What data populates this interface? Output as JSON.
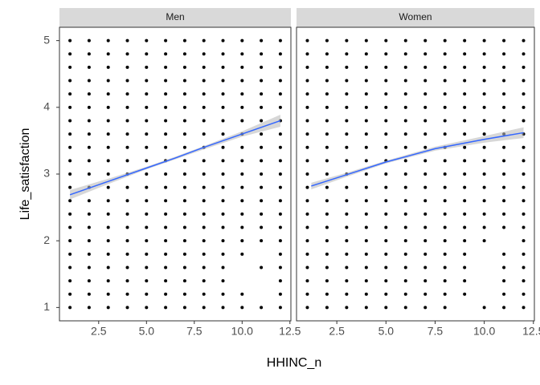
{
  "chart_data": {
    "type": "scatter",
    "x_label": "HHINC_n",
    "y_label": "Life_satisfaction",
    "xlim": [
      0.45,
      12.55
    ],
    "ylim": [
      0.8,
      5.2
    ],
    "xticks": [
      2.5,
      {
        "value": 5,
        "label": "5.0"
      },
      7.5,
      {
        "value": 10,
        "label": "10.0"
      },
      12.5
    ],
    "yticks": [
      1,
      2,
      3,
      4,
      5
    ],
    "point_color": "#000000",
    "line_color": "#3366ff",
    "band_color": "#bdbdbd",
    "panels": [
      {
        "name": "Men",
        "rows": [
          {
            "y": 1,
            "x": [
              1,
              2,
              3,
              4,
              5,
              6,
              7,
              8,
              9,
              10,
              11,
              12
            ]
          },
          {
            "y": 1.2,
            "x": [
              1,
              2,
              3,
              4,
              5,
              6,
              7,
              8,
              9,
              10,
              12
            ]
          },
          {
            "y": 1.4,
            "x": [
              1,
              2,
              3,
              4,
              5,
              6,
              7,
              8,
              9,
              12
            ]
          },
          {
            "y": 1.6,
            "x": [
              1,
              2,
              3,
              4,
              5,
              6,
              7,
              8,
              9,
              11,
              12
            ]
          },
          {
            "y": 1.8,
            "x": [
              1,
              2,
              3,
              4,
              5,
              6,
              7,
              8,
              9,
              10,
              12
            ]
          },
          {
            "y": 2,
            "x": [
              1,
              2,
              3,
              4,
              5,
              6,
              7,
              8,
              9,
              10,
              11,
              12
            ]
          },
          {
            "y": 2.2,
            "x": [
              1,
              2,
              3,
              4,
              5,
              6,
              7,
              8,
              9,
              10,
              11,
              12
            ]
          },
          {
            "y": 2.4,
            "x": [
              1,
              2,
              3,
              4,
              5,
              6,
              7,
              8,
              9,
              10,
              11,
              12
            ]
          },
          {
            "y": 2.6,
            "x": [
              1,
              2,
              3,
              4,
              5,
              6,
              7,
              8,
              9,
              10,
              11,
              12
            ]
          },
          {
            "y": 2.8,
            "x": [
              1,
              2,
              3,
              4,
              5,
              6,
              7,
              8,
              9,
              10,
              11,
              12
            ]
          },
          {
            "y": 3,
            "x": [
              1,
              2,
              3,
              4,
              5,
              6,
              7,
              8,
              9,
              10,
              11,
              12
            ]
          },
          {
            "y": 3.2,
            "x": [
              1,
              2,
              3,
              4,
              5,
              6,
              7,
              8,
              9,
              10,
              11,
              12
            ]
          },
          {
            "y": 3.4,
            "x": [
              1,
              2,
              3,
              4,
              5,
              6,
              7,
              8,
              9,
              10,
              11,
              12
            ]
          },
          {
            "y": 3.6,
            "x": [
              1,
              2,
              3,
              4,
              5,
              6,
              7,
              8,
              9,
              10,
              11,
              12
            ]
          },
          {
            "y": 3.8,
            "x": [
              1,
              2,
              3,
              4,
              5,
              6,
              7,
              8,
              9,
              10,
              11,
              12
            ]
          },
          {
            "y": 4,
            "x": [
              1,
              2,
              3,
              4,
              5,
              6,
              7,
              8,
              9,
              10,
              11,
              12
            ]
          },
          {
            "y": 4.2,
            "x": [
              1,
              2,
              3,
              4,
              5,
              6,
              7,
              8,
              9,
              10,
              11,
              12
            ]
          },
          {
            "y": 4.4,
            "x": [
              1,
              2,
              3,
              4,
              5,
              6,
              7,
              8,
              9,
              10,
              11,
              12
            ]
          },
          {
            "y": 4.6,
            "x": [
              1,
              2,
              3,
              4,
              5,
              6,
              7,
              8,
              9,
              10,
              11,
              12
            ]
          },
          {
            "y": 4.8,
            "x": [
              1,
              2,
              3,
              4,
              5,
              6,
              7,
              8,
              9,
              10,
              11,
              12
            ]
          },
          {
            "y": 5,
            "x": [
              1,
              2,
              3,
              4,
              5,
              6,
              7,
              8,
              9,
              10,
              11,
              12
            ]
          }
        ],
        "smooth": {
          "x": [
            1,
            3,
            5,
            6.5,
            8,
            10,
            12
          ],
          "y": [
            2.69,
            2.89,
            3.09,
            3.24,
            3.4,
            3.6,
            3.8
          ],
          "ci_lower": [
            2.62,
            2.85,
            3.07,
            3.22,
            3.37,
            3.56,
            3.71
          ],
          "ci_upper": [
            2.76,
            2.93,
            3.11,
            3.26,
            3.42,
            3.64,
            3.89
          ]
        }
      },
      {
        "name": "Women",
        "rows": [
          {
            "y": 1,
            "x": [
              1,
              2,
              3,
              4,
              5,
              6,
              7,
              8,
              10,
              11,
              12
            ]
          },
          {
            "y": 1.2,
            "x": [
              1,
              2,
              3,
              4,
              5,
              6,
              7,
              8,
              9,
              11,
              12
            ]
          },
          {
            "y": 1.4,
            "x": [
              1,
              2,
              3,
              4,
              5,
              6,
              7,
              8,
              9,
              11,
              12
            ]
          },
          {
            "y": 1.6,
            "x": [
              1,
              2,
              3,
              4,
              5,
              6,
              7,
              8,
              9,
              11,
              12
            ]
          },
          {
            "y": 1.8,
            "x": [
              1,
              2,
              3,
              4,
              5,
              6,
              7,
              8,
              9,
              11,
              12
            ]
          },
          {
            "y": 2,
            "x": [
              1,
              2,
              3,
              4,
              5,
              6,
              7,
              8,
              9,
              10,
              12
            ]
          },
          {
            "y": 2.2,
            "x": [
              1,
              2,
              3,
              4,
              5,
              6,
              7,
              8,
              9,
              10,
              11,
              12
            ]
          },
          {
            "y": 2.4,
            "x": [
              1,
              2,
              3,
              4,
              5,
              6,
              7,
              8,
              9,
              10,
              11,
              12
            ]
          },
          {
            "y": 2.6,
            "x": [
              1,
              2,
              3,
              4,
              5,
              6,
              7,
              8,
              9,
              10,
              11,
              12
            ]
          },
          {
            "y": 2.8,
            "x": [
              1,
              2,
              3,
              4,
              5,
              6,
              7,
              8,
              9,
              10,
              11,
              12
            ]
          },
          {
            "y": 3,
            "x": [
              1,
              2,
              3,
              4,
              5,
              6,
              7,
              8,
              9,
              10,
              11,
              12
            ]
          },
          {
            "y": 3.2,
            "x": [
              1,
              2,
              3,
              4,
              5,
              6,
              7,
              8,
              9,
              10,
              11,
              12
            ]
          },
          {
            "y": 3.4,
            "x": [
              1,
              2,
              3,
              4,
              5,
              6,
              7,
              8,
              9,
              10,
              11,
              12
            ]
          },
          {
            "y": 3.6,
            "x": [
              1,
              2,
              3,
              4,
              5,
              6,
              7,
              8,
              9,
              10,
              11,
              12
            ]
          },
          {
            "y": 3.8,
            "x": [
              1,
              2,
              3,
              4,
              5,
              6,
              7,
              8,
              9,
              10,
              11,
              12
            ]
          },
          {
            "y": 4,
            "x": [
              1,
              2,
              3,
              4,
              5,
              6,
              7,
              8,
              9,
              10,
              11,
              12
            ]
          },
          {
            "y": 4.2,
            "x": [
              1,
              2,
              3,
              4,
              5,
              6,
              7,
              8,
              9,
              10,
              11,
              12
            ]
          },
          {
            "y": 4.4,
            "x": [
              1,
              2,
              3,
              4,
              5,
              6,
              7,
              8,
              9,
              10,
              11,
              12
            ]
          },
          {
            "y": 4.6,
            "x": [
              1,
              2,
              3,
              4,
              5,
              6,
              7,
              8,
              9,
              10,
              11,
              12
            ]
          },
          {
            "y": 4.8,
            "x": [
              1,
              2,
              3,
              4,
              5,
              6,
              7,
              8,
              9,
              10,
              11,
              12
            ]
          },
          {
            "y": 5,
            "x": [
              1,
              2,
              3,
              4,
              5,
              6,
              7,
              8,
              9,
              10,
              11,
              12
            ]
          }
        ],
        "smooth": {
          "x": [
            1.2,
            3,
            5,
            7.5,
            10,
            12
          ],
          "y": [
            2.82,
            2.99,
            3.18,
            3.38,
            3.52,
            3.62
          ],
          "ci_lower": [
            2.77,
            2.96,
            3.16,
            3.35,
            3.47,
            3.54
          ],
          "ci_upper": [
            2.87,
            3.02,
            3.2,
            3.41,
            3.57,
            3.7
          ]
        }
      }
    ]
  }
}
